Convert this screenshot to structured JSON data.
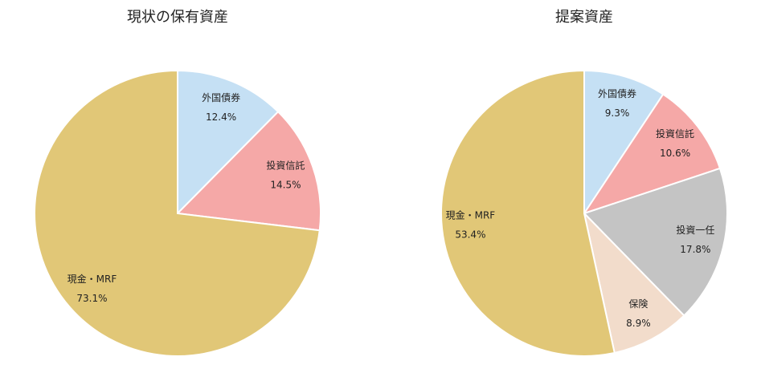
{
  "chart_data": [
    {
      "type": "pie",
      "title": "現状の保有資産",
      "categories": [
        "外国債券",
        "投資信託",
        "現金・MRF"
      ],
      "values": [
        12.4,
        14.5,
        73.1
      ],
      "value_labels": [
        "12.4%",
        "14.5%",
        "73.1%"
      ],
      "colors": [
        "#c5e0f4",
        "#f5a8a7",
        "#e1c777"
      ]
    },
    {
      "type": "pie",
      "title": "提案資産",
      "categories": [
        "外国債券",
        "投資信託",
        "投資一任",
        "保険",
        "現金・MRF"
      ],
      "values": [
        9.3,
        10.6,
        17.8,
        8.9,
        53.4
      ],
      "value_labels": [
        "9.3%",
        "10.6%",
        "17.8%",
        "8.9%",
        "53.4%"
      ],
      "colors": [
        "#c5e0f4",
        "#f5a8a7",
        "#c4c4c4",
        "#f2dccb",
        "#e1c777"
      ]
    }
  ]
}
